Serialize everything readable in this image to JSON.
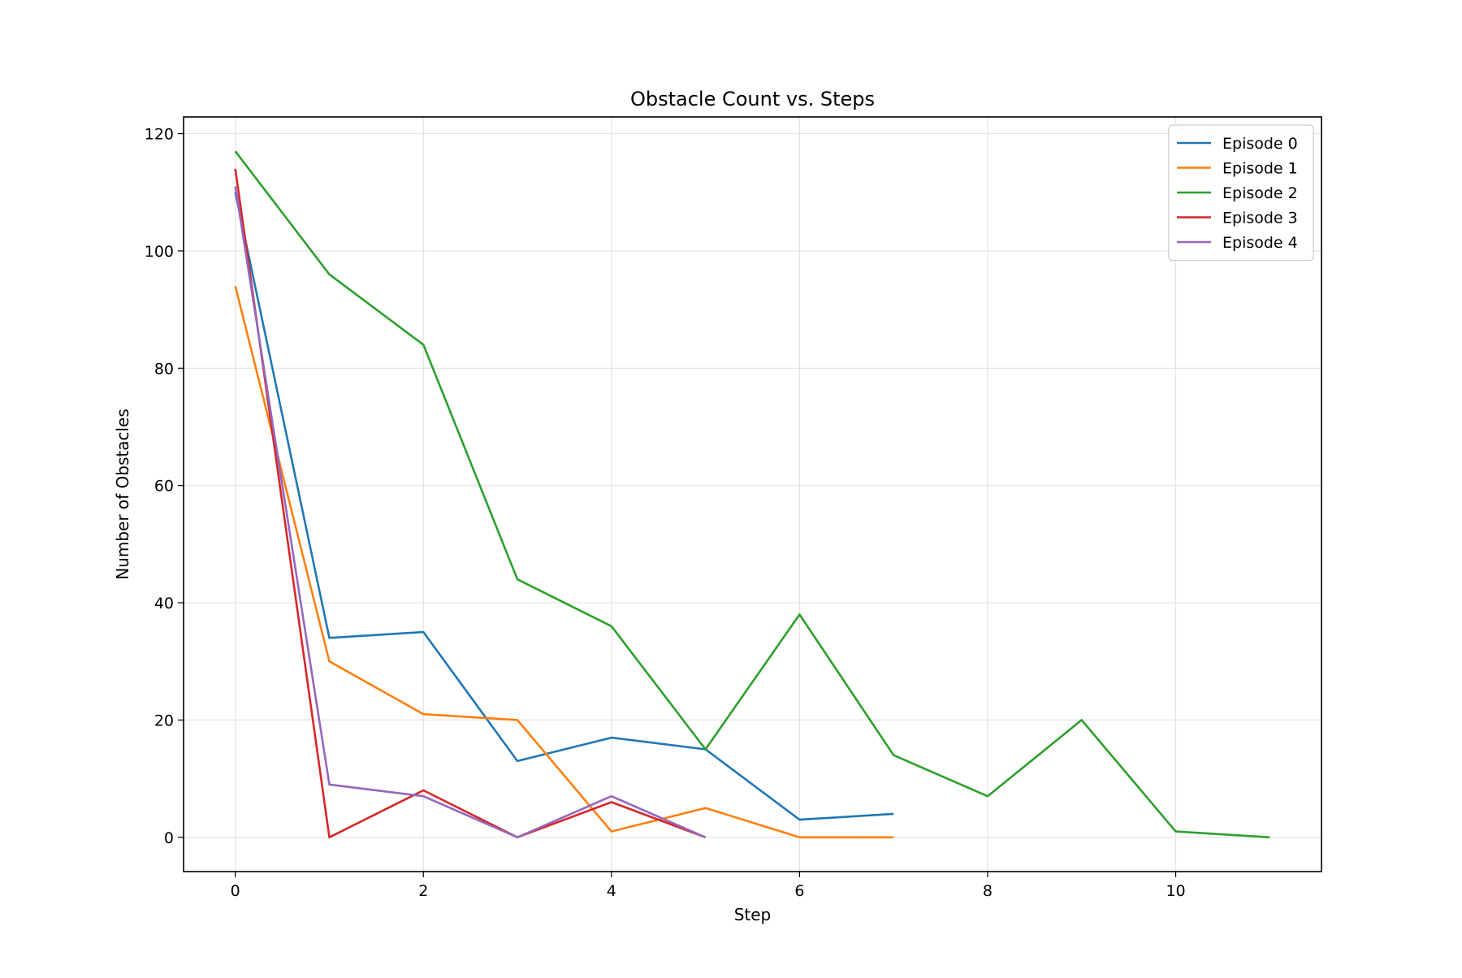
{
  "chart_data": {
    "type": "line",
    "title": "Obstacle Count vs. Steps",
    "xlabel": "Step",
    "ylabel": "Number of Obstacles",
    "xlim": [
      -0.55,
      11.55
    ],
    "ylim": [
      -5.85,
      122.85
    ],
    "xticks": [
      0,
      2,
      4,
      6,
      8,
      10
    ],
    "yticks": [
      0,
      20,
      40,
      60,
      80,
      100,
      120
    ],
    "grid": true,
    "legend_position": "top-right",
    "series": [
      {
        "name": "Episode 0",
        "color": "#1f77b4",
        "x": [
          0,
          1,
          2,
          3,
          4,
          5,
          6,
          7
        ],
        "y": [
          110,
          34,
          35,
          13,
          17,
          15,
          3,
          4
        ]
      },
      {
        "name": "Episode 1",
        "color": "#ff7f0e",
        "x": [
          0,
          1,
          2,
          3,
          4,
          5,
          6,
          7
        ],
        "y": [
          94,
          30,
          21,
          20,
          1,
          5,
          0,
          0
        ]
      },
      {
        "name": "Episode 2",
        "color": "#2ca02c",
        "x": [
          0,
          1,
          2,
          3,
          4,
          5,
          6,
          7,
          8,
          9,
          10,
          11
        ],
        "y": [
          117,
          96,
          84,
          44,
          36,
          15,
          38,
          14,
          7,
          20,
          1,
          0
        ]
      },
      {
        "name": "Episode 3",
        "color": "#d62728",
        "x": [
          0,
          1,
          2,
          3,
          4,
          5
        ],
        "y": [
          114,
          0,
          8,
          0,
          6,
          0
        ]
      },
      {
        "name": "Episode 4",
        "color": "#9467bd",
        "x": [
          0,
          1,
          2,
          3,
          4,
          5
        ],
        "y": [
          111,
          9,
          7,
          0,
          7,
          0
        ]
      }
    ]
  }
}
